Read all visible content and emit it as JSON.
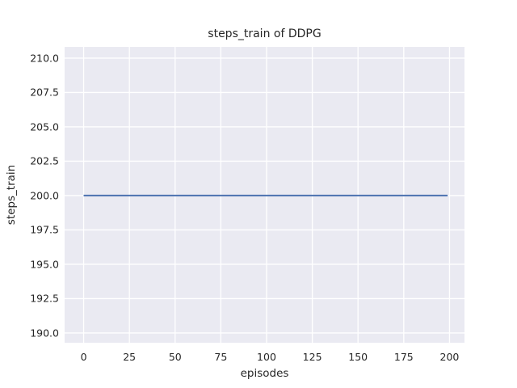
{
  "chart_data": {
    "type": "line",
    "title": "steps_train of DDPG",
    "xlabel": "episodes",
    "ylabel": "steps_train",
    "x_ticks": [
      0,
      25,
      50,
      75,
      100,
      125,
      150,
      175,
      200
    ],
    "x_tick_labels": [
      "0",
      "25",
      "50",
      "75",
      "100",
      "125",
      "150",
      "175",
      "200"
    ],
    "y_ticks": [
      190.0,
      192.5,
      195.0,
      197.5,
      200.0,
      202.5,
      205.0,
      207.5,
      210.0
    ],
    "y_tick_labels": [
      "190.0",
      "192.5",
      "195.0",
      "197.5",
      "200.0",
      "202.5",
      "205.0",
      "207.5",
      "210.0"
    ],
    "xlim": [
      -10.4,
      208.2
    ],
    "ylim": [
      189.29,
      210.82
    ],
    "grid": true,
    "legend_position": "none",
    "series": [
      {
        "name": "steps_train",
        "x": [
          0,
          199
        ],
        "y": [
          200,
          200
        ],
        "color": "#4c72b0",
        "note": "constant value 200 for all episodes 0-199"
      }
    ],
    "colors": {
      "figure_bg": "#ffffff",
      "plot_bg": "#eaeaf2",
      "grid": "#ffffff",
      "text": "#262626",
      "line": "#4c72b0"
    }
  }
}
